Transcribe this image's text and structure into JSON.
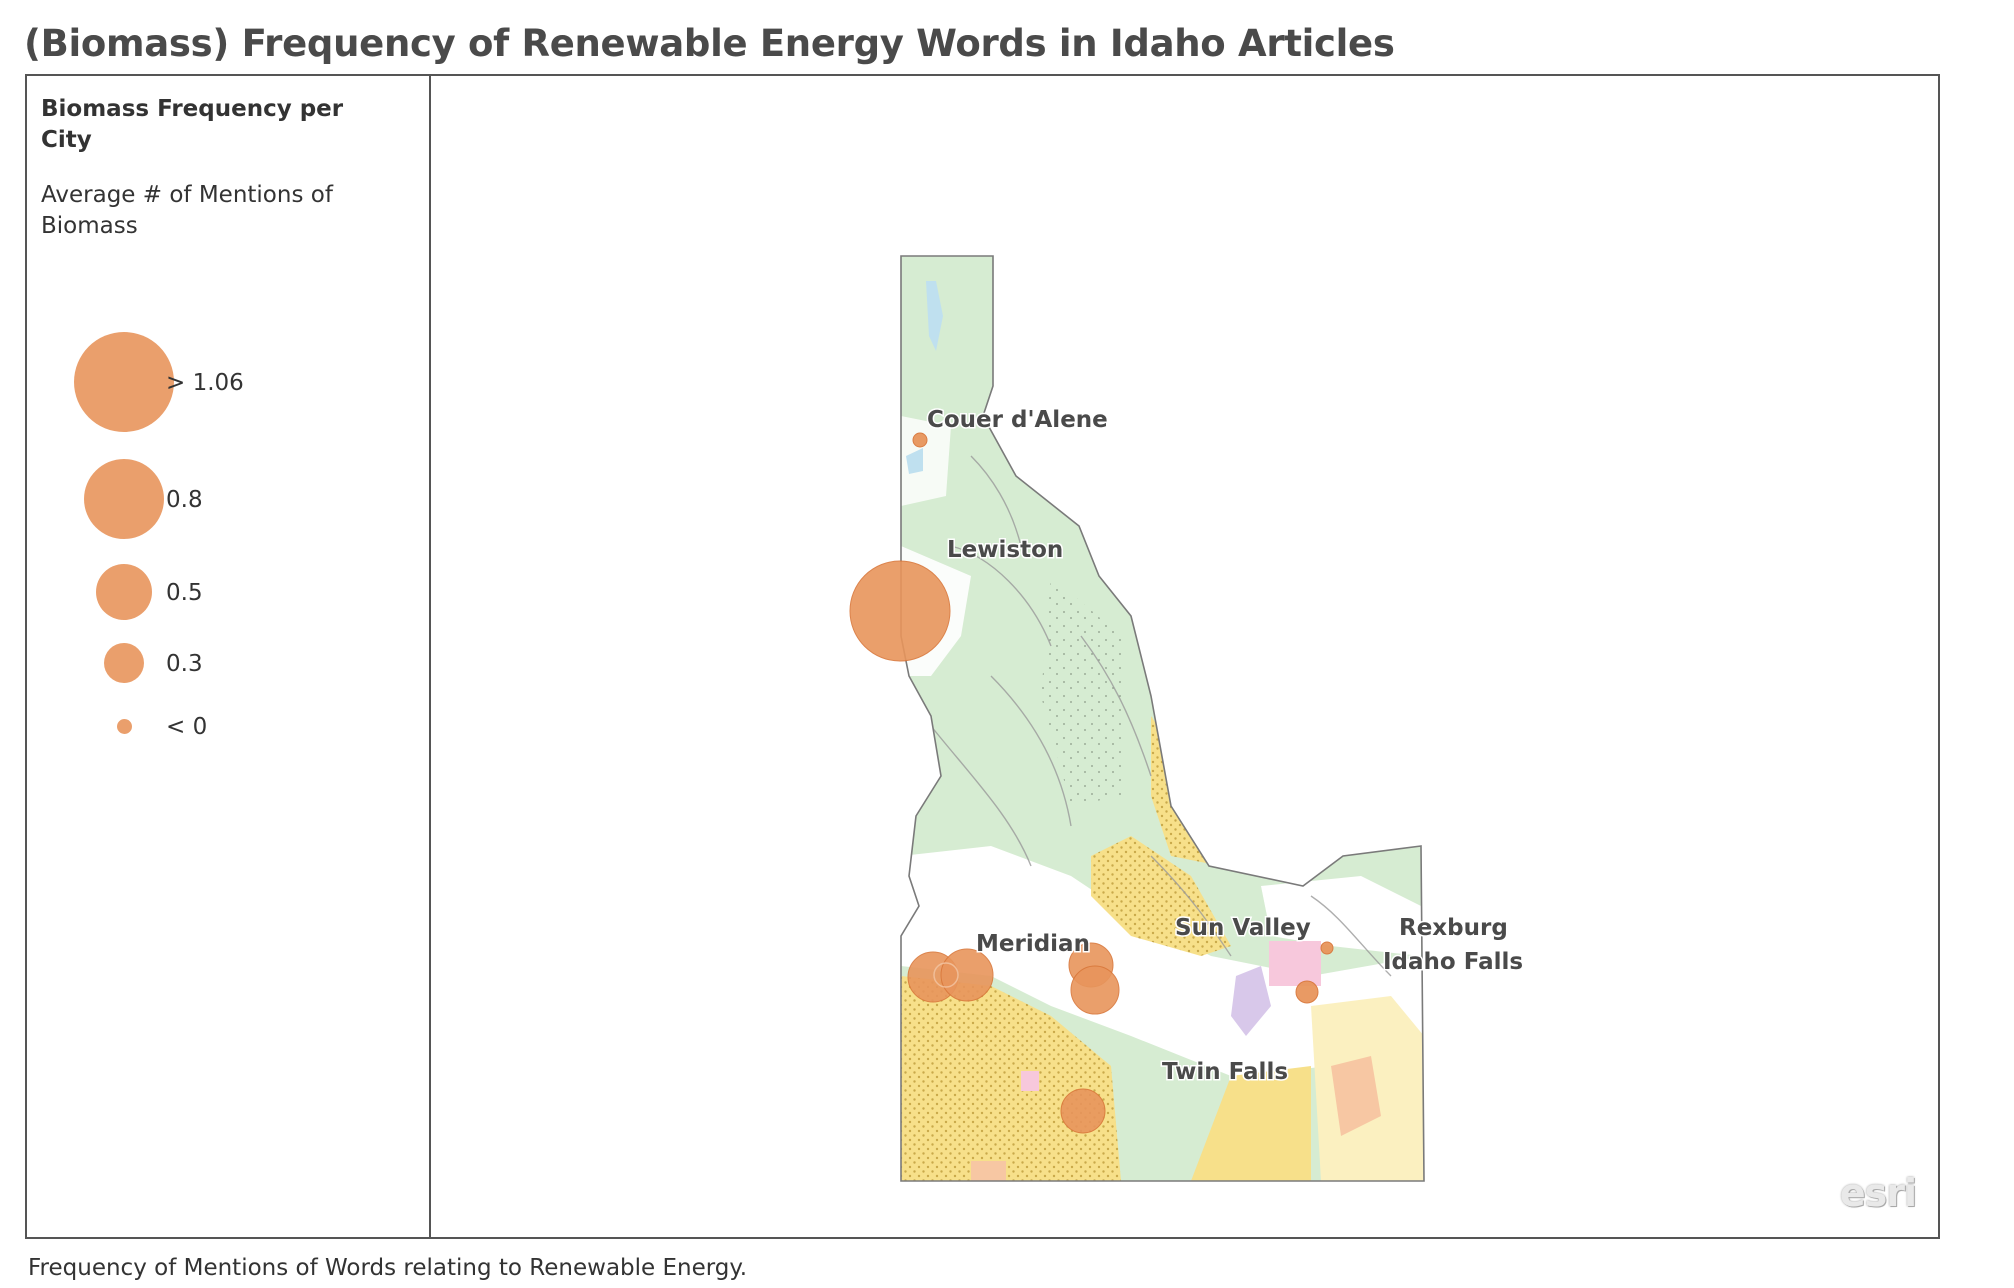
{
  "title": "(Biomass) Frequency of Renewable Energy Words in Idaho Articles",
  "caption": "Frequency of Mentions of Words relating to Renewable Energy.",
  "legend": {
    "heading": "Biomass Frequency per City",
    "subheading": "Average # of Mentions of Biomass",
    "items": [
      {
        "label": "> 1.06"
      },
      {
        "label": "0.8"
      },
      {
        "label": "0.5"
      },
      {
        "label": "0.3"
      },
      {
        "label": "< 0"
      }
    ]
  },
  "attribution": "esri",
  "colors": {
    "marker": "#e8955c",
    "marker_stroke": "#d9773a",
    "forest": "#d6ecd2",
    "range": "#f7e08a",
    "border": "#7a7a7a"
  },
  "cities": [
    {
      "name": "Couer d'Alene",
      "label": "Couer d'Alene",
      "bin": "< 0"
    },
    {
      "name": "Lewiston",
      "label": "Lewiston",
      "bin": "> 1.06"
    },
    {
      "name": "Meridian",
      "label": "Meridian",
      "bin": "0.5"
    },
    {
      "name": "Sun Valley",
      "label": "Sun Valley",
      "bin": "0.5"
    },
    {
      "name": "Rexburg",
      "label": "Rexburg",
      "bin": "< 0"
    },
    {
      "name": "Idaho Falls",
      "label": "Idaho Falls",
      "bin": "0.3"
    },
    {
      "name": "Twin Falls",
      "label": "Twin  Falls",
      "bin": "0.5"
    }
  ]
}
